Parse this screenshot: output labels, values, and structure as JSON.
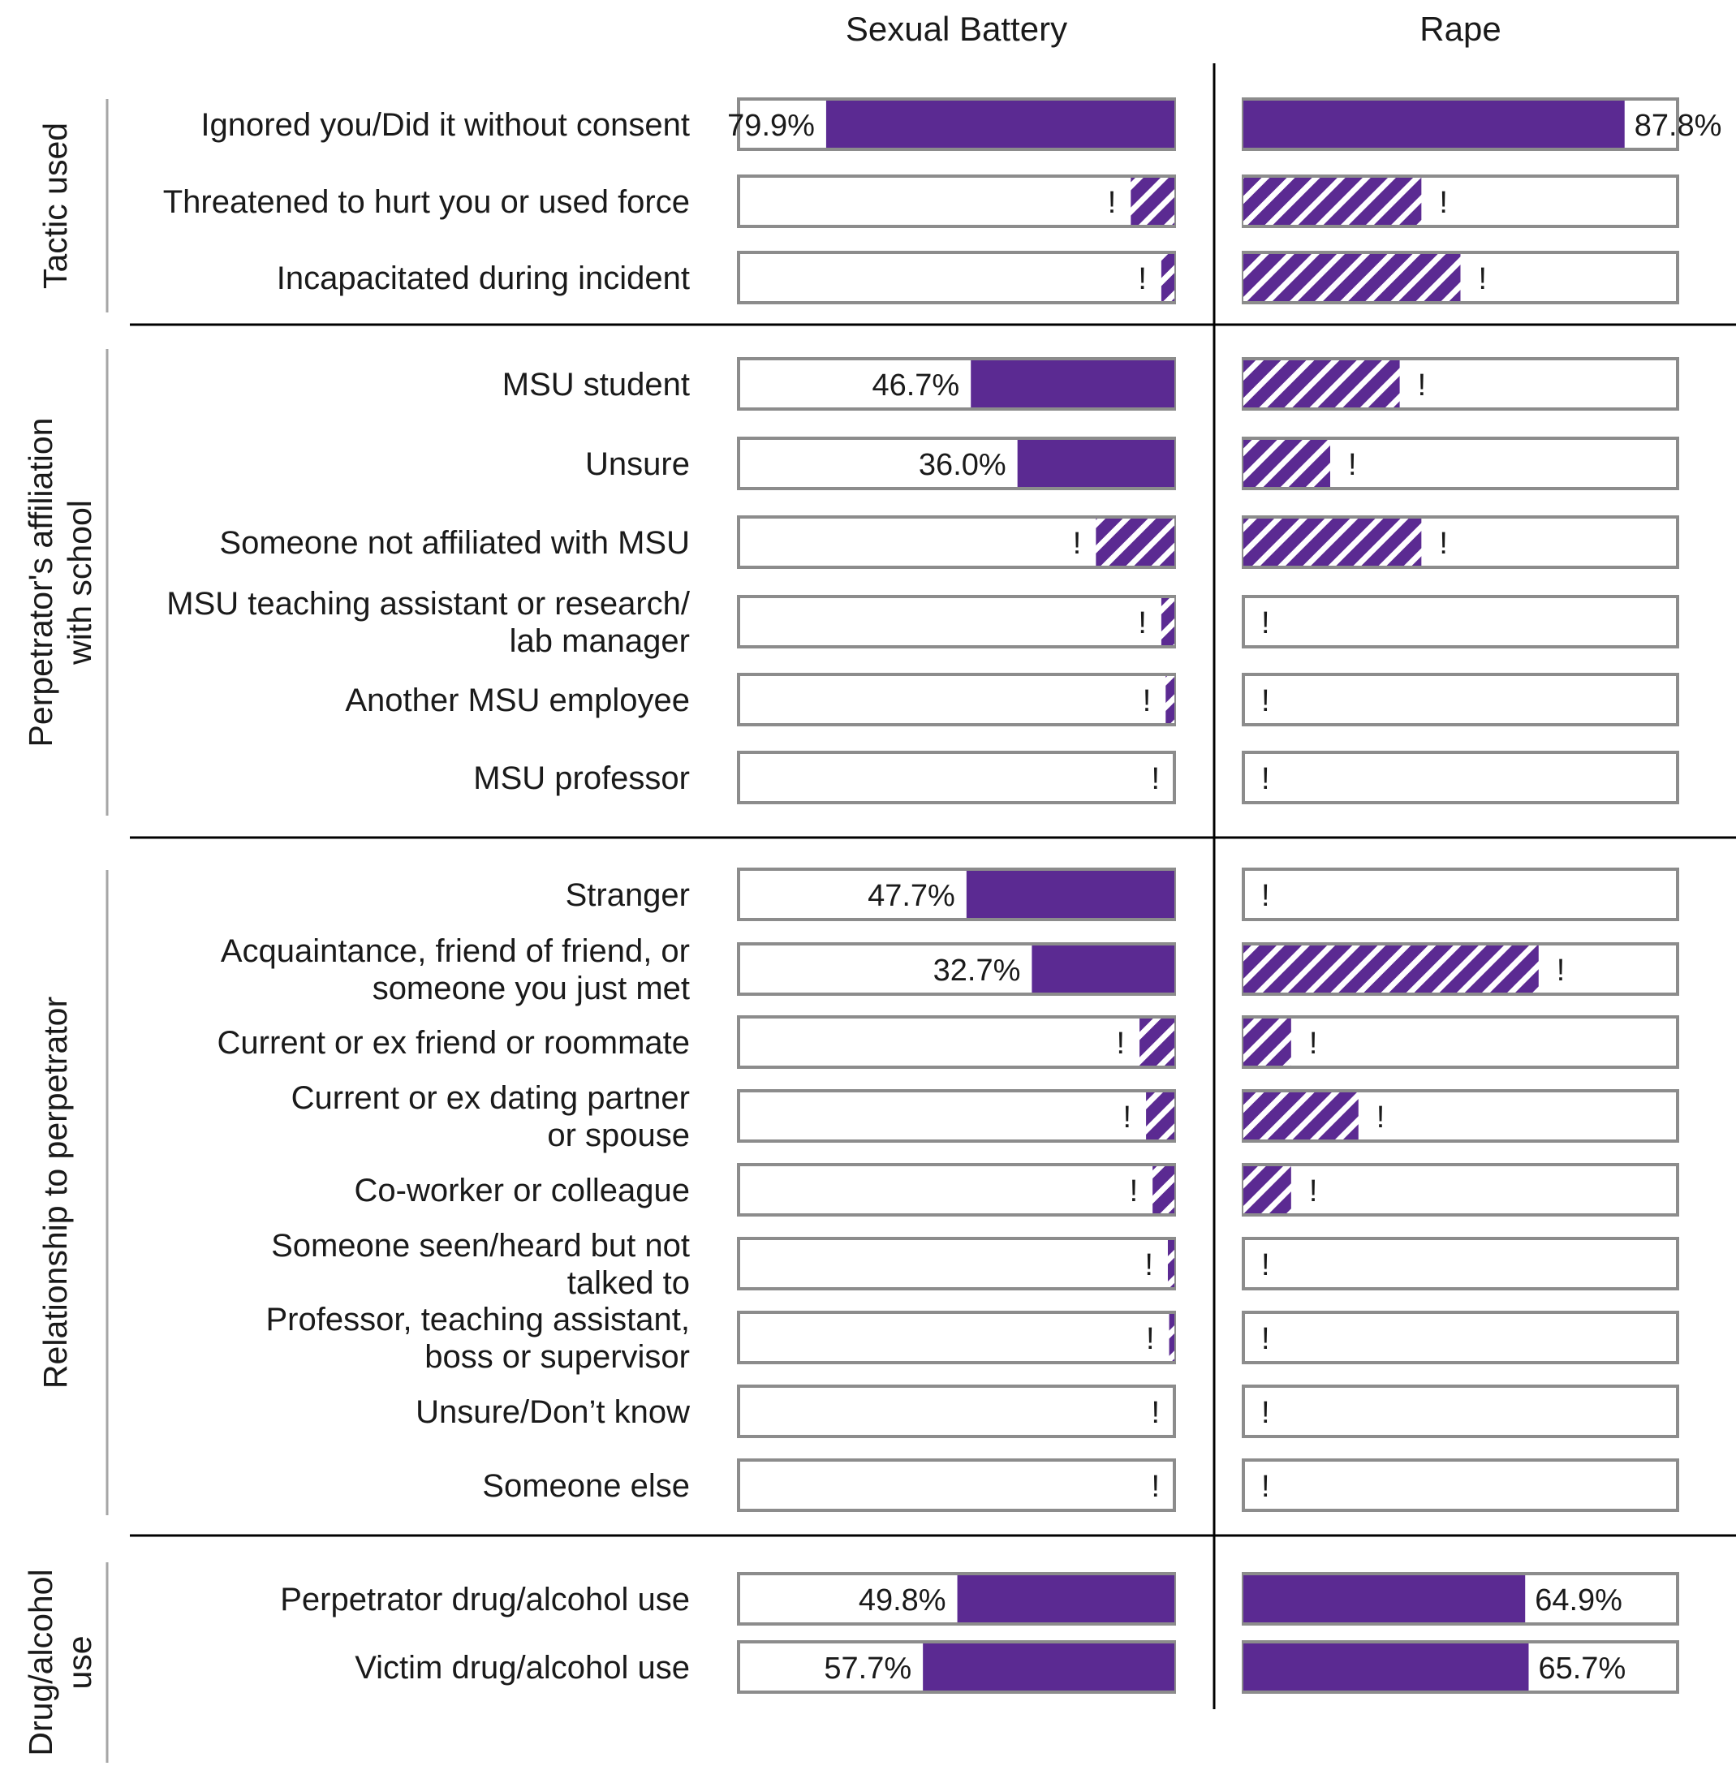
{
  "colors": {
    "solid": "#5b2a92",
    "frame": "#8c8c8c",
    "rule": "#000000",
    "side_rule": "#a6a6a6"
  },
  "chart_data": {
    "type": "bar",
    "orientation": "horizontal",
    "columns": [
      {
        "title": "Sexual Battery",
        "direction": "right-to-left"
      },
      {
        "title": "Rape",
        "direction": "left-to-right"
      }
    ],
    "groups": [
      {
        "label": [
          "Tactic used"
        ],
        "rows": [
          {
            "label": [
              "Ignored you/Did it without consent"
            ],
            "values": [
              {
                "value": 79.9,
                "text": "79.9%",
                "style": "solid"
              },
              {
                "value": 87.8,
                "text": "87.8%",
                "style": "solid"
              }
            ]
          },
          {
            "label": [
              "Threatened to hurt you or used force"
            ],
            "values": [
              {
                "value": 10,
                "text": "!",
                "style": "hatched"
              },
              {
                "value": 41,
                "text": "!",
                "style": "hatched"
              }
            ]
          },
          {
            "label": [
              "Incapacitated during incident"
            ],
            "values": [
              {
                "value": 3,
                "text": "!",
                "style": "hatched"
              },
              {
                "value": 50,
                "text": "!",
                "style": "hatched"
              }
            ]
          }
        ]
      },
      {
        "label": [
          "Perpetrator's affiliation",
          "with school"
        ],
        "rows": [
          {
            "label": [
              "MSU student"
            ],
            "values": [
              {
                "value": 46.7,
                "text": "46.7%",
                "style": "solid"
              },
              {
                "value": 36,
                "text": "!",
                "style": "hatched"
              }
            ]
          },
          {
            "label": [
              "Unsure"
            ],
            "values": [
              {
                "value": 36.0,
                "text": "36.0%",
                "style": "solid"
              },
              {
                "value": 20,
                "text": "!",
                "style": "hatched"
              }
            ]
          },
          {
            "label": [
              "Someone not affiliated with MSU"
            ],
            "values": [
              {
                "value": 18,
                "text": "!",
                "style": "hatched"
              },
              {
                "value": 41,
                "text": "!",
                "style": "hatched"
              }
            ]
          },
          {
            "label": [
              "MSU teaching assistant or research/",
              "lab manager"
            ],
            "values": [
              {
                "value": 3,
                "text": "!",
                "style": "hatched"
              },
              {
                "value": 0,
                "text": "!",
                "style": "hatched"
              }
            ]
          },
          {
            "label": [
              "Another MSU employee"
            ],
            "values": [
              {
                "value": 2,
                "text": "!",
                "style": "hatched"
              },
              {
                "value": 0,
                "text": "!",
                "style": "hatched"
              }
            ]
          },
          {
            "label": [
              "MSU professor"
            ],
            "values": [
              {
                "value": 0,
                "text": "!",
                "style": "hatched"
              },
              {
                "value": 0,
                "text": "!",
                "style": "hatched"
              }
            ]
          }
        ]
      },
      {
        "label": [
          "Relationship to perpetrator"
        ],
        "rows": [
          {
            "label": [
              "Stranger"
            ],
            "values": [
              {
                "value": 47.7,
                "text": "47.7%",
                "style": "solid"
              },
              {
                "value": 0,
                "text": "!",
                "style": "hatched"
              }
            ]
          },
          {
            "label": [
              "Acquaintance, friend of friend, or",
              "someone you just met"
            ],
            "values": [
              {
                "value": 32.7,
                "text": "32.7%",
                "style": "solid"
              },
              {
                "value": 68,
                "text": "!",
                "style": "hatched"
              }
            ]
          },
          {
            "label": [
              "Current or ex friend or roommate"
            ],
            "values": [
              {
                "value": 8,
                "text": "!",
                "style": "hatched"
              },
              {
                "value": 11,
                "text": "!",
                "style": "hatched"
              }
            ]
          },
          {
            "label": [
              "Current or ex dating partner",
              "or spouse"
            ],
            "values": [
              {
                "value": 6.5,
                "text": "!",
                "style": "hatched"
              },
              {
                "value": 26.5,
                "text": "!",
                "style": "hatched"
              }
            ]
          },
          {
            "label": [
              "Co-worker or colleague"
            ],
            "values": [
              {
                "value": 5,
                "text": "!",
                "style": "hatched"
              },
              {
                "value": 11,
                "text": "!",
                "style": "hatched"
              }
            ]
          },
          {
            "label": [
              "Someone seen/heard but not",
              "talked to"
            ],
            "values": [
              {
                "value": 1.5,
                "text": "!",
                "style": "hatched"
              },
              {
                "value": 0,
                "text": "!",
                "style": "hatched"
              }
            ]
          },
          {
            "label": [
              "Professor, teaching assistant,",
              "boss or supervisor"
            ],
            "values": [
              {
                "value": 1.2,
                "text": "!",
                "style": "hatched"
              },
              {
                "value": 0,
                "text": "!",
                "style": "hatched"
              }
            ]
          },
          {
            "label": [
              "Unsure/Don’t know"
            ],
            "values": [
              {
                "value": 0,
                "text": "!",
                "style": "hatched"
              },
              {
                "value": 0,
                "text": "!",
                "style": "hatched"
              }
            ]
          },
          {
            "label": [
              "Someone else"
            ],
            "values": [
              {
                "value": 0,
                "text": "!",
                "style": "hatched"
              },
              {
                "value": 0,
                "text": "!",
                "style": "hatched"
              }
            ]
          }
        ]
      },
      {
        "label": [
          "Drug/alcohol",
          "use"
        ],
        "rows": [
          {
            "label": [
              "Perpetrator drug/alcohol use"
            ],
            "values": [
              {
                "value": 49.8,
                "text": "49.8%",
                "style": "solid"
              },
              {
                "value": 64.9,
                "text": "64.9%",
                "style": "solid"
              }
            ]
          },
          {
            "label": [
              "Victim drug/alcohol use"
            ],
            "values": [
              {
                "value": 57.7,
                "text": "57.7%",
                "style": "solid"
              },
              {
                "value": 65.7,
                "text": "65.7%",
                "style": "solid"
              }
            ]
          }
        ]
      }
    ]
  }
}
